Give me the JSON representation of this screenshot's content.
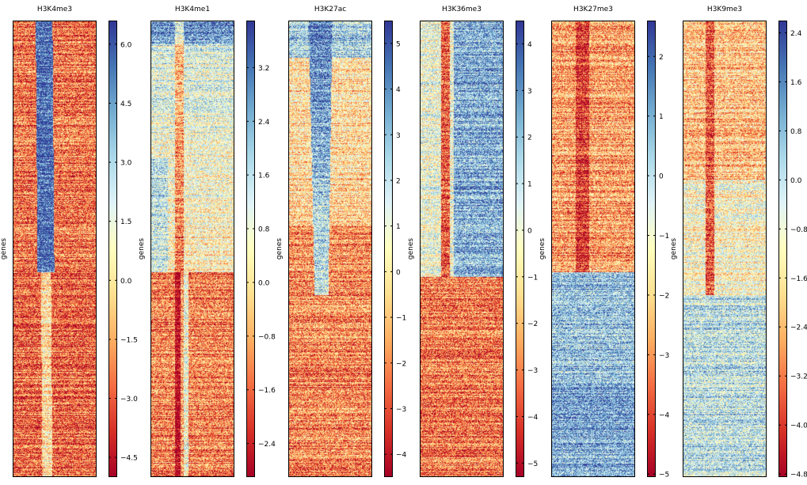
{
  "chart_data": [
    {
      "type": "heatmap",
      "title": "H3K4me3",
      "ylabel": "genes",
      "pattern": "center-stripe-fading",
      "colorbar": {
        "min": -5.0,
        "max": 6.6,
        "ticks": [
          6.0,
          4.5,
          3.0,
          1.5,
          0.0,
          -1.5,
          -3.0,
          -4.5
        ],
        "decimals": 1
      }
    },
    {
      "type": "heatmap",
      "title": "H3K4me1",
      "ylabel": "genes",
      "pattern": "broad-blue-top-red-center",
      "colorbar": {
        "min": -2.9,
        "max": 3.9,
        "ticks": [
          3.2,
          2.4,
          1.6,
          0.8,
          0.0,
          -0.8,
          -1.6,
          -2.4
        ],
        "decimals": 1
      }
    },
    {
      "type": "heatmap",
      "title": "H3K27ac",
      "ylabel": "genes",
      "pattern": "diagonal-stripe",
      "colorbar": {
        "min": -4.5,
        "max": 5.5,
        "ticks": [
          5,
          4,
          3,
          2,
          1,
          0,
          -1,
          -2,
          -3,
          -4
        ],
        "decimals": 0
      }
    },
    {
      "type": "heatmap",
      "title": "H3K36me3",
      "ylabel": "genes",
      "pattern": "blue-body-top-half",
      "colorbar": {
        "min": -5.3,
        "max": 4.5,
        "ticks": [
          4,
          3,
          2,
          1,
          0,
          -1,
          -2,
          -3,
          -4,
          -5
        ],
        "decimals": 0
      }
    },
    {
      "type": "heatmap",
      "title": "H3K27me3",
      "ylabel": "genes",
      "pattern": "blue-bottom-half",
      "colorbar": {
        "min": -5.05,
        "max": 2.6,
        "ticks": [
          2,
          1,
          0,
          -1,
          -2,
          -3,
          -4,
          -5
        ],
        "decimals": 0
      }
    },
    {
      "type": "heatmap",
      "title": "H3K9me3",
      "ylabel": "genes",
      "pattern": "red-center-blue-bottom",
      "colorbar": {
        "min": -4.85,
        "max": 2.6,
        "ticks": [
          2.4,
          1.6,
          0.8,
          0.0,
          -0.8,
          -1.6,
          -2.4,
          -3.2,
          -4.0,
          -4.8
        ],
        "decimals": 1
      }
    }
  ]
}
